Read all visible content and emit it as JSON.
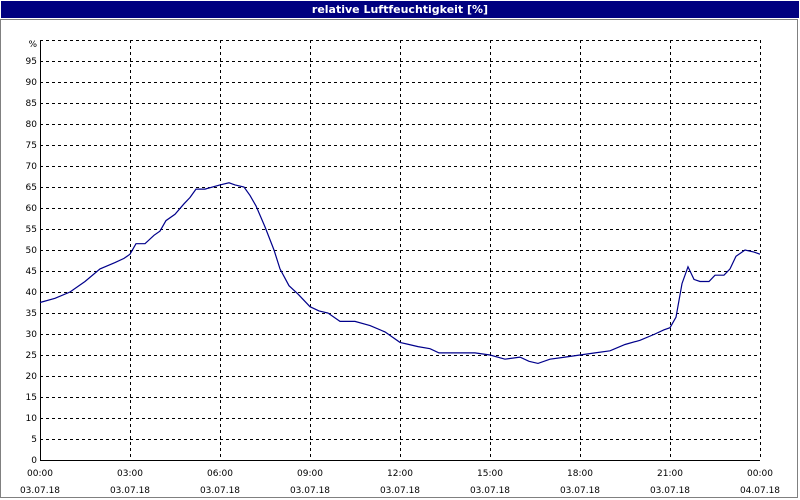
{
  "window": {
    "title": "relative Luftfeuchtigkeit [%]"
  },
  "colors": {
    "title_bg": "#000080",
    "line": "#00008b",
    "grid": "#000000"
  },
  "chart_data": {
    "type": "line",
    "title": "relative Luftfeuchtigkeit [%]",
    "ylabel": "%",
    "xlabel": "",
    "ylim": [
      0,
      100
    ],
    "xlim": [
      0,
      24
    ],
    "grid": true,
    "legend": "none",
    "yticks": [
      "0",
      "5",
      "10",
      "15",
      "20",
      "25",
      "30",
      "35",
      "40",
      "45",
      "50",
      "55",
      "60",
      "65",
      "70",
      "75",
      "80",
      "85",
      "90",
      "95"
    ],
    "xticks": [
      {
        "time": "00:00",
        "date": "03.07.18"
      },
      {
        "time": "03:00",
        "date": "03.07.18"
      },
      {
        "time": "06:00",
        "date": "03.07.18"
      },
      {
        "time": "09:00",
        "date": "03.07.18"
      },
      {
        "time": "12:00",
        "date": "03.07.18"
      },
      {
        "time": "15:00",
        "date": "03.07.18"
      },
      {
        "time": "18:00",
        "date": "03.07.18"
      },
      {
        "time": "21:00",
        "date": "03.07.18"
      },
      {
        "time": "00:00",
        "date": "04.07.18"
      }
    ],
    "series": [
      {
        "name": "",
        "x": [
          0,
          0.5,
          1,
          1.5,
          2,
          2.5,
          2.8,
          3.0,
          3.2,
          3.5,
          3.8,
          4.0,
          4.2,
          4.5,
          4.8,
          5.0,
          5.2,
          5.5,
          6.0,
          6.3,
          6.5,
          6.8,
          7.0,
          7.2,
          7.5,
          7.8,
          8.0,
          8.3,
          8.6,
          9.0,
          9.3,
          9.6,
          10.0,
          10.5,
          11.0,
          11.5,
          12.0,
          12.3,
          12.6,
          13.0,
          13.3,
          13.6,
          14.0,
          14.5,
          15.0,
          15.5,
          16.0,
          16.3,
          16.6,
          17.0,
          17.5,
          18.0,
          18.5,
          19.0,
          19.5,
          20.0,
          20.5,
          20.8,
          21.0,
          21.2,
          21.4,
          21.6,
          21.8,
          22.0,
          22.3,
          22.5,
          22.8,
          23.0,
          23.2,
          23.5,
          23.8,
          24.0
        ],
        "y": [
          37.5,
          38.5,
          40,
          42.5,
          45.5,
          47,
          48,
          49,
          51.5,
          51.5,
          53.5,
          54.5,
          57,
          58.5,
          61,
          62.5,
          64.5,
          64.5,
          65.5,
          66,
          65.5,
          65,
          63,
          60.5,
          55.5,
          50,
          45.5,
          41.5,
          39.5,
          36.5,
          35.5,
          35,
          33,
          33,
          32,
          30.5,
          28,
          27.5,
          27,
          26.5,
          25.5,
          25.5,
          25.5,
          25.5,
          25,
          24,
          24.5,
          23.5,
          23,
          24,
          24.5,
          25,
          25.5,
          26,
          27.5,
          28.5,
          30,
          31,
          31.5,
          34,
          42,
          46,
          43,
          42.5,
          42.5,
          44,
          44,
          45.5,
          48.5,
          50,
          49.5,
          49
        ]
      }
    ]
  }
}
